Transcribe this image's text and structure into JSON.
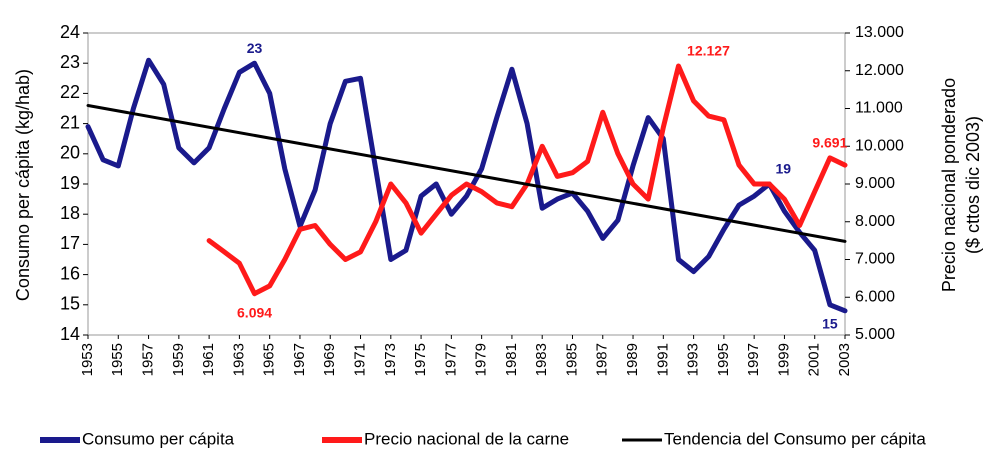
{
  "chart_data": {
    "type": "line",
    "ylabel": "Consumo per cápita (kg/hab)",
    "y2label": [
      "Precio nacional ponderado",
      "($ cttos dic 2003)"
    ],
    "x": [
      1953,
      1954,
      1955,
      1956,
      1957,
      1958,
      1959,
      1960,
      1961,
      1962,
      1963,
      1964,
      1965,
      1966,
      1967,
      1968,
      1969,
      1970,
      1971,
      1972,
      1973,
      1974,
      1975,
      1976,
      1977,
      1978,
      1979,
      1980,
      1981,
      1982,
      1983,
      1984,
      1985,
      1986,
      1987,
      1988,
      1989,
      1990,
      1991,
      1992,
      1993,
      1994,
      1995,
      1996,
      1997,
      1998,
      1999,
      2000,
      2001,
      2002,
      2003
    ],
    "xlim": [
      1953,
      2003
    ],
    "xticks": [
      1953,
      1955,
      1957,
      1959,
      1961,
      1963,
      1965,
      1967,
      1969,
      1971,
      1973,
      1975,
      1977,
      1979,
      1981,
      1983,
      1985,
      1987,
      1989,
      1991,
      1993,
      1995,
      1997,
      1999,
      2001,
      2003
    ],
    "ylim": [
      14,
      24
    ],
    "yticks": [
      14,
      15,
      16,
      17,
      18,
      19,
      20,
      21,
      22,
      23,
      24
    ],
    "y2lim": [
      5000,
      13000
    ],
    "y2ticks": [
      {
        "value": 5000,
        "label": "5.000"
      },
      {
        "value": 6000,
        "label": "6.000"
      },
      {
        "value": 7000,
        "label": "7.000"
      },
      {
        "value": 8000,
        "label": "8.000"
      },
      {
        "value": 9000,
        "label": "9.000"
      },
      {
        "value": 10000,
        "label": "10.000"
      },
      {
        "value": 11000,
        "label": "11.000"
      },
      {
        "value": 12000,
        "label": "12.000"
      },
      {
        "value": 13000,
        "label": "13.000"
      }
    ],
    "grid": false,
    "legend": "bottom",
    "series": [
      {
        "name": "Consumo per cápita",
        "color": "#1a1a8c",
        "values": [
          20.9,
          19.8,
          19.6,
          21.5,
          23.1,
          22.3,
          20.2,
          19.7,
          20.2,
          21.5,
          22.7,
          23,
          22.0,
          19.5,
          17.6,
          18.8,
          21.0,
          22.4,
          22.5,
          19.5,
          16.5,
          16.8,
          18.6,
          19.0,
          18.0,
          18.6,
          19.5,
          21.2,
          22.8,
          21.0,
          18.2,
          18.5,
          18.7,
          18.1,
          17.2,
          17.8,
          19.6,
          21.2,
          20.5,
          16.5,
          16.1,
          16.6,
          17.5,
          18.3,
          18.6,
          19,
          18.1,
          17.4,
          16.8,
          15,
          14.8
        ],
        "value_labels": [
          null,
          null,
          null,
          null,
          null,
          null,
          null,
          null,
          null,
          null,
          null,
          "23",
          null,
          null,
          null,
          null,
          null,
          null,
          null,
          null,
          null,
          null,
          null,
          null,
          null,
          null,
          null,
          null,
          null,
          null,
          null,
          null,
          null,
          null,
          null,
          null,
          null,
          null,
          null,
          null,
          null,
          null,
          null,
          null,
          null,
          "19",
          null,
          null,
          null,
          "15",
          null
        ]
      },
      {
        "name": "Precio nacional de la carne",
        "color": "#ff1a1a",
        "axis": "y2",
        "values": [
          null,
          null,
          null,
          null,
          null,
          null,
          null,
          null,
          7500,
          7200,
          6900,
          6094,
          6300,
          7000,
          7800,
          7900,
          7400,
          7000,
          7200,
          8000,
          9000,
          8500,
          7700,
          8200,
          8700,
          9000,
          8800,
          8500,
          8400,
          9000,
          10000,
          9200,
          9300,
          9600,
          10900,
          9800,
          9000,
          8600,
          10500,
          12127,
          11200,
          10800,
          10700,
          9500,
          9000,
          9000,
          8600,
          7900,
          8800,
          9691,
          9500
        ],
        "value_labels": [
          null,
          null,
          null,
          null,
          null,
          null,
          null,
          null,
          null,
          null,
          null,
          "6.094",
          null,
          null,
          null,
          null,
          null,
          null,
          null,
          null,
          null,
          null,
          null,
          null,
          null,
          null,
          null,
          null,
          null,
          null,
          null,
          null,
          null,
          null,
          null,
          null,
          null,
          null,
          null,
          "12.127",
          null,
          null,
          null,
          null,
          null,
          null,
          null,
          null,
          null,
          "9.691",
          null
        ]
      },
      {
        "name": "Tendencia del Consumo per cápita",
        "color": "#000000",
        "x": [
          1953,
          2003
        ],
        "values": [
          21.6,
          17.1
        ]
      }
    ]
  }
}
